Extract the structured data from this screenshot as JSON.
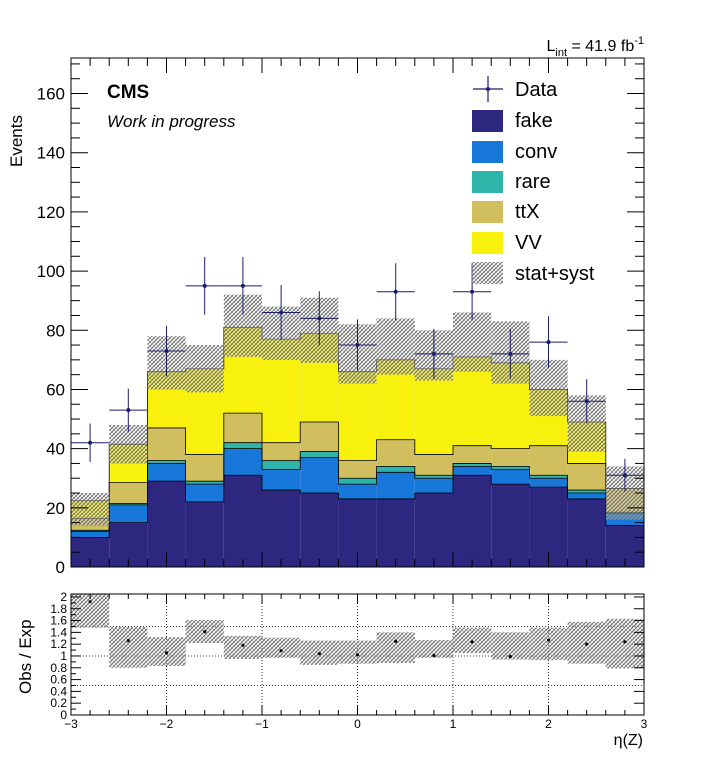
{
  "header": {
    "lumi_text": "L",
    "lumi_sub": "int",
    "lumi_value": " = 41.9 fb",
    "lumi_sup": "-1",
    "cms": "CMS",
    "wip": "Work in progress"
  },
  "chart_data": [
    {
      "type": "bar",
      "stacked": true,
      "title": "",
      "xlabel": "η(Z)",
      "ylabel": "Events",
      "xlim": [
        -3,
        3
      ],
      "ylim": [
        0,
        172
      ],
      "yticks": [
        0,
        20,
        40,
        60,
        80,
        100,
        120,
        140,
        160
      ],
      "bin_edges": [
        -3.0,
        -2.6,
        -2.2,
        -1.8,
        -1.4,
        -1.0,
        -0.6,
        -0.2,
        0.2,
        0.6,
        1.0,
        1.4,
        1.8,
        2.2,
        2.6,
        3.0
      ],
      "legend_position": "top-right",
      "series": [
        {
          "name": "fake",
          "color": "#2d2780",
          "values": [
            10,
            15,
            29,
            22,
            31,
            26,
            25,
            23,
            23,
            25,
            31,
            28,
            27,
            23,
            14
          ]
        },
        {
          "name": "conv",
          "color": "#1778da",
          "values": [
            2,
            6,
            6,
            6,
            9,
            7,
            12,
            5,
            9,
            5,
            3,
            5,
            3,
            2,
            4
          ]
        },
        {
          "name": "rare",
          "color": "#2eb4a8",
          "values": [
            0.4,
            0.5,
            1,
            1,
            2,
            3,
            2,
            2,
            2,
            1,
            1,
            1,
            1,
            1,
            0.5
          ]
        },
        {
          "name": "ttX",
          "color": "#d1bf5f",
          "values": [
            4,
            7,
            11,
            9,
            10,
            6,
            10,
            6,
            9,
            7,
            6,
            6,
            10,
            9,
            8
          ]
        },
        {
          "name": "VV",
          "color": "#f7f10d",
          "values": [
            6,
            13,
            19,
            29,
            29,
            35,
            30,
            30,
            27,
            29,
            30,
            29,
            19,
            14,
            0
          ]
        }
      ],
      "data": {
        "name": "Data",
        "x": [
          -2.8,
          -2.4,
          -2.0,
          -1.6,
          -1.2,
          -0.8,
          -0.4,
          0.0,
          0.4,
          0.8,
          1.2,
          1.6,
          2.0,
          2.4,
          2.8
        ],
        "y": [
          42,
          53,
          73,
          95,
          95,
          86,
          84,
          75,
          93,
          72,
          93,
          72,
          76,
          56,
          31
        ]
      },
      "uncertainty": {
        "name": "stat+syst",
        "up": [
          25,
          48,
          78,
          75,
          92,
          88,
          91,
          82,
          84,
          80,
          86,
          83,
          70,
          58,
          34
        ],
        "down": [
          14,
          35,
          60,
          59,
          71,
          70,
          69,
          62,
          65,
          63,
          66,
          62,
          51,
          39,
          16
        ]
      },
      "legend": [
        "Data",
        "fake",
        "conv",
        "rare",
        "ttX",
        "VV",
        "stat+syst"
      ]
    },
    {
      "type": "scatter",
      "title": "",
      "xlabel": "",
      "ylabel": "Obs / Exp",
      "xlim": [
        -3,
        3
      ],
      "ylim": [
        0,
        2.05
      ],
      "xticks": [
        -3,
        -2,
        -1,
        0,
        1,
        2,
        3
      ],
      "xtick_labels": [
        "−3",
        "−2",
        "−1",
        "0",
        "1",
        "2",
        "3"
      ],
      "ytick_labels": [
        "0",
        "0.2",
        "0.4",
        "0.6",
        "0.8",
        "1",
        "1.2",
        "1.4",
        "1.6",
        "1.8",
        "2"
      ],
      "ratio": [
        1.92,
        1.26,
        1.05,
        1.41,
        1.18,
        1.09,
        1.04,
        1.02,
        1.25,
        1.01,
        1.24,
        0.99,
        1.27,
        1.2,
        1.24
      ],
      "band_up": [
        2.05,
        1.49,
        1.32,
        1.61,
        1.34,
        1.31,
        1.26,
        1.26,
        1.4,
        1.27,
        1.48,
        1.4,
        1.48,
        1.58,
        1.63
      ],
      "band_down": [
        1.48,
        0.8,
        0.83,
        1.22,
        0.95,
        0.97,
        0.85,
        0.87,
        0.88,
        0.97,
        1.05,
        0.94,
        0.93,
        0.87,
        0.79
      ]
    }
  ]
}
